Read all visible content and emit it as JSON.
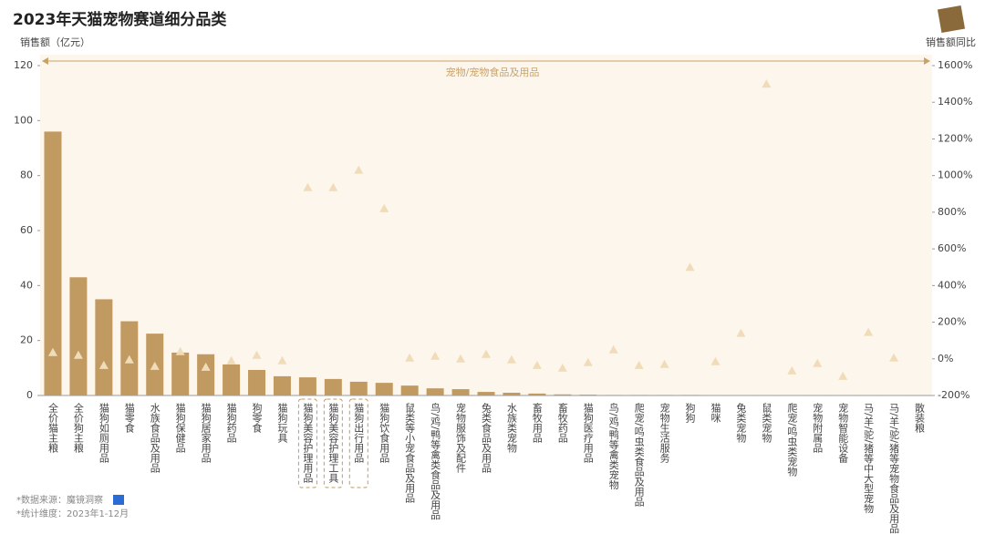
{
  "chart_data": {
    "type": "bar_triangle",
    "title": "2023年天猫宠物赛道细分品类",
    "y_label": "销售额（亿元）",
    "y2_label": "销售额同比",
    "annotation": "宠物/宠物食品及用品",
    "categories": [
      "全价猫主粮",
      "全价狗主粮",
      "猫狗如厕用品",
      "猫零食",
      "水族食品及用品",
      "猫狗保健品",
      "猫狗居家用品",
      "猫狗药品",
      "狗零食",
      "猫狗玩具",
      "猫狗美容护理用品",
      "猫狗美容护理工具",
      "猫狗出行用品",
      "猫狗饮食用品",
      "鼠类等小宠食品及用品",
      "鸟/鸡/鸭等禽类食品及用品",
      "宠物服饰及配件",
      "兔类食品及用品",
      "水族类宠物",
      "畜牧用品",
      "畜牧药品",
      "猫狗医疗用品",
      "鸟/鸡/鸭等禽类宠物",
      "爬宠/鸣虫类食品及用品",
      "宠物生活服务",
      "狗狗",
      "猫咪",
      "兔类宠物",
      "鼠类宠物",
      "爬宠/鸣虫类宠物",
      "宠物附属品",
      "宠物智能设备",
      "马/羊/驼/猪等中大型宠物",
      "马/羊/驼/猪等宠物食品及用品",
      "散装粮"
    ],
    "series": [
      {
        "color": "#c19a62",
        "values": [
          96,
          43,
          35,
          27,
          22.5,
          15.6,
          15,
          11.3,
          9.3,
          7,
          6.6,
          6,
          5,
          4.6,
          3.6,
          2.6,
          2.3,
          1.3,
          1,
          0.7,
          0.4,
          0.3,
          0.2,
          0.2,
          0.2,
          0.2,
          0.1,
          0.1,
          0.1,
          0.05,
          0.05,
          0.05,
          0.05,
          0.02,
          0.01
        ]
      },
      {
        "color": "#f0dcb8",
        "axis": "y2",
        "values": [
          35,
          20,
          -35,
          -5,
          -40,
          40,
          -45,
          -10,
          20,
          -10,
          935,
          935,
          1030,
          820,
          5,
          15,
          0,
          25,
          -5,
          -35,
          -50,
          -20,
          50,
          -35,
          -30,
          500,
          -15,
          140,
          1500,
          -65,
          -25,
          -95,
          145,
          5,
          null
        ]
      }
    ],
    "ylim": [
      0,
      120
    ],
    "yticks": [
      0,
      20,
      40,
      60,
      80,
      100,
      120
    ],
    "y2lim": [
      -200,
      1600
    ],
    "y2ticks": [
      {
        "value": -200,
        "label": "-200%"
      },
      {
        "value": 0,
        "label": "0%"
      },
      {
        "value": 200,
        "label": "200%"
      },
      {
        "value": 400,
        "label": "400%"
      },
      {
        "value": 600,
        "label": "600%"
      },
      {
        "value": 800,
        "label": "800%"
      },
      {
        "value": 1000,
        "label": "1000%"
      },
      {
        "value": 1200,
        "label": "1200%"
      },
      {
        "value": 1400,
        "label": "1400%"
      },
      {
        "value": 1600,
        "label": "1600%"
      }
    ]
  },
  "footer": {
    "source": "*数据来源：魔镜洞察",
    "scope": "*统计维度：2023年1-12月"
  }
}
